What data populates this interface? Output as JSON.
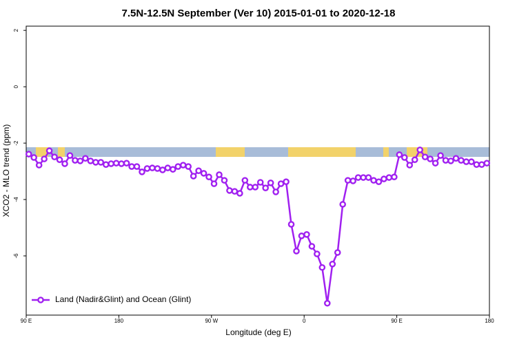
{
  "chart_data": {
    "type": "line",
    "title": "7.5N-12.5N September (Ver 10)   2015-01-01 to 2020-12-18",
    "x_label": "Longitude (deg E)",
    "y_label": "XCO2 - MLO trend (ppm)",
    "xlim": [
      90,
      540
    ],
    "ylim": [
      -8.1,
      2.15
    ],
    "xticks": [
      {
        "value": 90,
        "label": "90 E"
      },
      {
        "value": 180,
        "label": "180"
      },
      {
        "value": 270,
        "label": "90 W"
      },
      {
        "value": 360,
        "label": "0"
      },
      {
        "value": 450,
        "label": "90 E"
      },
      {
        "value": 540,
        "label": "180"
      }
    ],
    "yticks": [
      2,
      0,
      -2,
      -4,
      -6
    ],
    "legend": "bottom-left",
    "x": [
      92.5,
      97.5,
      102.5,
      107.5,
      112.5,
      117.5,
      122.5,
      127.5,
      132.5,
      137.5,
      142.5,
      147.5,
      152.5,
      157.5,
      162.5,
      167.5,
      172.5,
      177.5,
      182.5,
      187.5,
      192.5,
      197.5,
      202.5,
      207.5,
      212.5,
      217.5,
      222.5,
      227.5,
      232.5,
      237.5,
      242.5,
      247.5,
      252.5,
      257.5,
      262.5,
      267.5,
      272.5,
      277.5,
      282.5,
      287.5,
      292.5,
      297.5,
      302.5,
      307.5,
      312.5,
      317.5,
      322.5,
      327.5,
      332.5,
      337.5,
      342.5,
      347.5,
      352.5,
      357.5,
      362.5,
      367.5,
      372.5,
      377.5,
      382.5,
      387.5,
      392.5,
      397.5,
      402.5,
      407.5,
      412.5,
      417.5,
      422.5,
      427.5,
      432.5,
      437.5,
      442.5,
      447.5,
      452.5,
      457.5,
      462.5,
      467.5,
      472.5,
      477.5,
      482.5,
      487.5,
      492.5,
      497.5,
      502.5,
      507.5,
      512.5,
      517.5,
      522.5,
      527.5,
      532.5,
      537.5
    ],
    "series": [
      {
        "name": "Land (Nadir&Glint) and Ocean (Glint)",
        "color": "#a020f0",
        "values": [
          -2.39,
          -2.51,
          -2.78,
          -2.56,
          -2.27,
          -2.49,
          -2.59,
          -2.73,
          -2.44,
          -2.61,
          -2.63,
          -2.54,
          -2.63,
          -2.68,
          -2.68,
          -2.76,
          -2.73,
          -2.71,
          -2.73,
          -2.71,
          -2.83,
          -2.83,
          -3.02,
          -2.9,
          -2.88,
          -2.9,
          -2.95,
          -2.88,
          -2.93,
          -2.83,
          -2.78,
          -2.83,
          -3.17,
          -2.98,
          -3.07,
          -3.2,
          -3.44,
          -3.12,
          -3.32,
          -3.68,
          -3.71,
          -3.78,
          -3.32,
          -3.56,
          -3.56,
          -3.39,
          -3.59,
          -3.41,
          -3.73,
          -3.44,
          -3.37,
          -4.88,
          -5.83,
          -5.29,
          -5.24,
          -5.66,
          -5.93,
          -6.41,
          -7.68,
          -6.29,
          -5.88,
          -4.17,
          -3.32,
          -3.34,
          -3.22,
          -3.22,
          -3.22,
          -3.32,
          -3.37,
          -3.27,
          -3.22,
          -3.2,
          -2.41,
          -2.51,
          -2.78,
          -2.59,
          -2.24,
          -2.49,
          -2.56,
          -2.71,
          -2.44,
          -2.61,
          -2.63,
          -2.54,
          -2.61,
          -2.66,
          -2.66,
          -2.76,
          -2.76,
          -2.71
        ]
      }
    ]
  }
}
